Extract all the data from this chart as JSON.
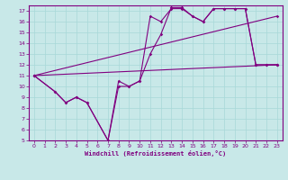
{
  "background_color": "#c8e8e8",
  "line_color": "#800080",
  "grid_color": "#a8d8d8",
  "xlabel": "Windchill (Refroidissement éolien,°C)",
  "xlabel_color": "#800080",
  "tick_color": "#800080",
  "xlim": [
    -0.5,
    23.5
  ],
  "ylim": [
    5,
    17.5
  ],
  "xticks": [
    0,
    1,
    2,
    3,
    4,
    5,
    6,
    7,
    8,
    9,
    10,
    11,
    12,
    13,
    14,
    15,
    16,
    17,
    18,
    19,
    20,
    21,
    22,
    23
  ],
  "yticks": [
    5,
    6,
    7,
    8,
    9,
    10,
    11,
    12,
    13,
    14,
    15,
    16,
    17
  ],
  "line1_x": [
    0,
    23
  ],
  "line1_y": [
    11,
    12
  ],
  "line2_x": [
    0,
    23
  ],
  "line2_y": [
    11,
    16.5
  ],
  "line3_x": [
    0,
    2,
    3,
    4,
    5,
    7,
    8,
    9,
    10,
    11,
    12,
    13,
    14,
    15,
    16,
    17,
    18,
    19,
    20,
    21,
    22,
    23
  ],
  "line3_y": [
    11,
    9.5,
    8.5,
    9.0,
    8.5,
    5.0,
    10.5,
    10.0,
    10.5,
    16.5,
    16.0,
    17.2,
    17.2,
    16.5,
    16.0,
    17.2,
    17.2,
    17.2,
    17.2,
    12.0,
    12.0,
    12.0
  ],
  "line4_x": [
    0,
    2,
    3,
    4,
    5,
    7,
    8,
    9,
    10,
    11,
    12,
    13,
    14,
    15,
    16,
    17,
    18,
    19,
    20,
    21,
    22,
    23
  ],
  "line4_y": [
    11,
    9.5,
    8.5,
    9.0,
    8.5,
    5.0,
    10.0,
    10.0,
    10.5,
    13.0,
    14.8,
    17.3,
    17.3,
    16.5,
    16.0,
    17.2,
    17.2,
    17.2,
    17.2,
    12.0,
    12.0,
    12.0
  ]
}
